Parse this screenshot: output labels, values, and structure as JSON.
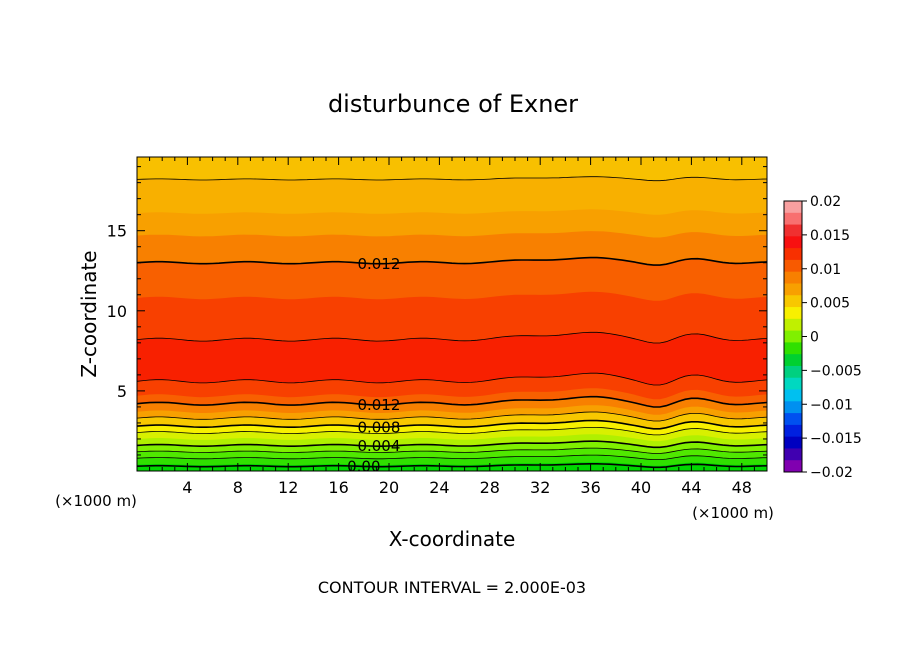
{
  "chart_data": {
    "type": "heatmap",
    "title": "disturbunce of Exner",
    "xlabel": "X-coordinate",
    "ylabel": "Z-coordinate",
    "x_unit": "(×1000 m)",
    "y_unit": "(×1000 m)",
    "xlim": [
      0,
      50
    ],
    "ylim": [
      0,
      19.6
    ],
    "x_ticks": [
      4,
      8,
      12,
      16,
      20,
      24,
      28,
      32,
      36,
      40,
      44,
      48
    ],
    "y_ticks": [
      5,
      10,
      15
    ],
    "footer": "CONTOUR INTERVAL = 2.000E-03",
    "colorbar": {
      "range": [
        -0.02,
        0.02
      ],
      "tick_values": [
        0.02,
        0.015,
        0.01,
        0.005,
        0,
        -0.005,
        -0.01,
        -0.015,
        -0.02
      ],
      "tick_labels": [
        "0.02",
        "0.015",
        "0.01",
        "0.005",
        "0",
        "−0.005",
        "−0.01",
        "−0.015",
        "−0.02"
      ],
      "colors": [
        "#f8a0a0",
        "#f87070",
        "#f03030",
        "#f81010",
        "#f83000",
        "#f85a00",
        "#f88000",
        "#f8a000",
        "#f8c800",
        "#f8f000",
        "#c0f000",
        "#80f000",
        "#30e000",
        "#00d030",
        "#00d080",
        "#00d8c0",
        "#00c0f0",
        "#0090f0",
        "#0050f0",
        "#0020e0",
        "#0000c0",
        "#4000b0",
        "#8000b0"
      ]
    },
    "bands": [
      {
        "z": 19.6,
        "value": 0.0114,
        "color": "#f8c000"
      },
      {
        "z": 18.2,
        "value": 0.0104,
        "color": "#f8b000"
      },
      {
        "z": 16.1,
        "value": 0.0114,
        "color": "#f8a000"
      },
      {
        "z": 14.7,
        "value": 0.0124,
        "color": "#f88000"
      },
      {
        "z": 13.0,
        "value": 0.0134,
        "color": "#f86000"
      },
      {
        "z": 10.8,
        "value": 0.0144,
        "color": "#f84000"
      },
      {
        "z": 8.2,
        "value": 0.0155,
        "color": "#f82000"
      },
      {
        "z": 5.6,
        "value": 0.0144,
        "color": "#f84000"
      },
      {
        "z": 4.7,
        "value": 0.0134,
        "color": "#f86000"
      },
      {
        "z": 4.2,
        "value": 0.0114,
        "color": "#f88000"
      },
      {
        "z": 3.7,
        "value": 0.0104,
        "color": "#f8a000"
      },
      {
        "z": 3.3,
        "value": 0.0094,
        "color": "#f8c800"
      },
      {
        "z": 2.8,
        "value": 0.0084,
        "color": "#f8f000"
      },
      {
        "z": 2.4,
        "value": 0.0074,
        "color": "#d8f000"
      },
      {
        "z": 2.0,
        "value": 0.0064,
        "color": "#b0f000"
      },
      {
        "z": 1.6,
        "value": 0.0054,
        "color": "#80f000"
      },
      {
        "z": 1.2,
        "value": 0.0044,
        "color": "#50e800"
      },
      {
        "z": 0.8,
        "value": 0.0034,
        "color": "#30e000"
      },
      {
        "z": 0.4,
        "value": 0.0024,
        "color": "#00d800"
      }
    ],
    "contours": [
      {
        "z": 18.2,
        "bold": false,
        "label": ""
      },
      {
        "z": 13.0,
        "bold": true,
        "label": "0.012",
        "label_x": 19.2
      },
      {
        "z": 8.2,
        "bold": false,
        "label": ""
      },
      {
        "z": 5.6,
        "bold": false,
        "label": ""
      },
      {
        "z": 4.2,
        "bold": true,
        "label": "0.012",
        "label_x": 19.2
      },
      {
        "z": 3.3,
        "bold": false,
        "label": ""
      },
      {
        "z": 2.8,
        "bold": true,
        "label": "0.008",
        "label_x": 19.2
      },
      {
        "z": 2.4,
        "bold": false,
        "label": ""
      },
      {
        "z": 1.6,
        "bold": true,
        "label": "0.004",
        "label_x": 19.2
      },
      {
        "z": 1.2,
        "bold": false,
        "label": ""
      },
      {
        "z": 0.8,
        "bold": false,
        "label": ""
      },
      {
        "z": 0.3,
        "bold": true,
        "label": "0.00",
        "label_x": 18.0
      }
    ]
  }
}
